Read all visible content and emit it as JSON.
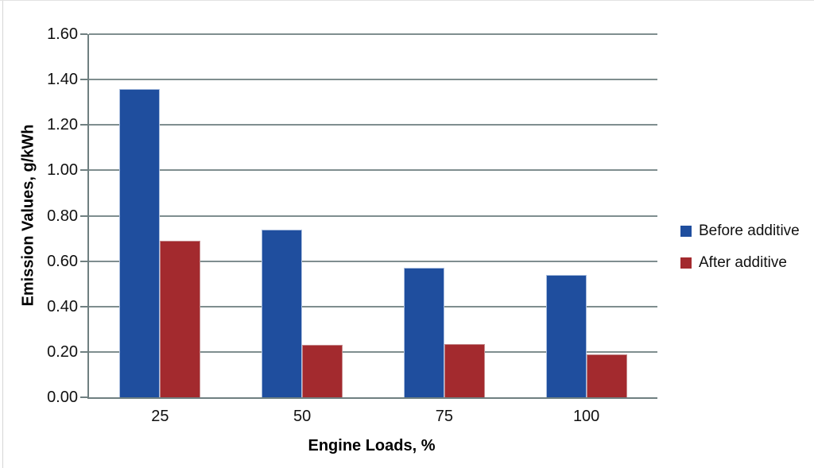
{
  "chart_data": {
    "type": "bar",
    "title": "",
    "categories": [
      "25",
      "50",
      "75",
      "100"
    ],
    "series": [
      {
        "name": "Before additive",
        "color": "#1f4e9e",
        "border_color": "#aabedf",
        "values": [
          1.36,
          0.74,
          0.57,
          0.54
        ]
      },
      {
        "name": "After additive",
        "color": "#a32a2e",
        "border_color": "#c58a8c",
        "values": [
          0.69,
          0.23,
          0.235,
          0.19
        ]
      }
    ],
    "xlabel": "Engine Loads, %",
    "ylabel": "Emission Values, g/kWh",
    "ylim": [
      0,
      1.6
    ],
    "ytick_step": 0.2,
    "yticks": [
      "0.00",
      "0.20",
      "0.40",
      "0.60",
      "0.80",
      "1.00",
      "1.20",
      "1.40",
      "1.60"
    ],
    "grid": "horizontal",
    "gridline_color": "#7f8e8f",
    "axis_color": "#6f7f80",
    "legend_position": "right",
    "legend": [
      "Before additive",
      "After additive"
    ]
  }
}
